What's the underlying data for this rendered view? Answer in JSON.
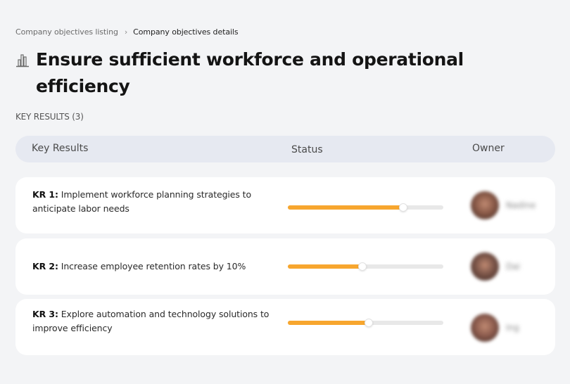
{
  "breadcrumb": {
    "parent": "Company objectives listing",
    "separator": "›",
    "current": "Company objectives details"
  },
  "page": {
    "icon": "bar-chart-icon",
    "title": "Ensure sufficient workforce and operational efficiency"
  },
  "section": {
    "label": "KEY RESULTS (3)"
  },
  "table": {
    "headers": {
      "key_results": "Key Results",
      "status": "Status",
      "owner": "Owner"
    },
    "rows": [
      {
        "prefix": "KR 1:",
        "text": " Implement workforce planning strategies to anticipate labor needs",
        "progress": 74,
        "owner_name": "Nadine",
        "avatar_color": "#8a5a48"
      },
      {
        "prefix": "KR 2:",
        "text": " Increase employee retention rates by 10%",
        "progress": 48,
        "owner_name": "Dai",
        "avatar_color": "#7a5448"
      },
      {
        "prefix": "KR 3:",
        "text": " Explore automation and technology solutions to improve efficiency",
        "progress": 52,
        "owner_name": "Ing",
        "avatar_color": "#8d5c4e"
      }
    ]
  },
  "colors": {
    "progress_fill": "#f7a62e",
    "progress_track": "#e8e8e8",
    "header_bg": "#e6e9f1",
    "page_bg": "#f3f4f6"
  }
}
